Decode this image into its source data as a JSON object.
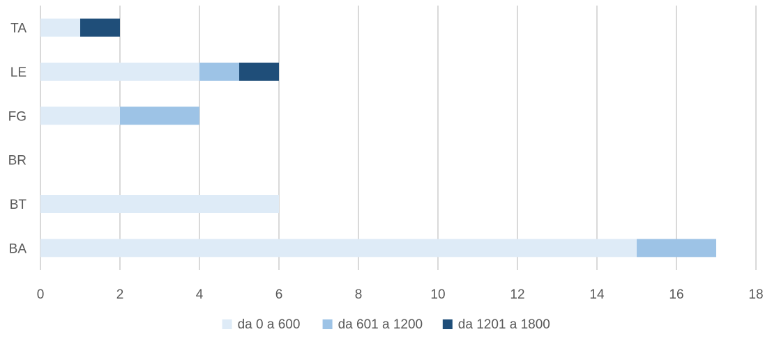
{
  "chart_data": {
    "type": "bar",
    "orientation": "horizontal",
    "stacked": true,
    "title": "",
    "xlabel": "",
    "ylabel": "",
    "categories": [
      "BA",
      "BT",
      "BR",
      "FG",
      "LE",
      "TA"
    ],
    "series": [
      {
        "name": "da 0 a 600",
        "color": "#deebf7",
        "values": [
          15,
          6,
          0,
          2,
          4,
          1
        ]
      },
      {
        "name": "da 601 a 1200",
        "color": "#9dc3e6",
        "values": [
          2,
          0,
          0,
          2,
          1,
          0
        ]
      },
      {
        "name": "da 1201 a 1800",
        "color": "#1f4e79",
        "values": [
          0,
          0,
          0,
          0,
          1,
          1
        ]
      }
    ],
    "xlim": [
      0,
      18
    ],
    "xticks": [
      0,
      2,
      4,
      6,
      8,
      10,
      12,
      14,
      16,
      18
    ],
    "xtick_labels": [
      "0",
      "2",
      "4",
      "6",
      "8",
      "10",
      "12",
      "14",
      "16",
      "18"
    ],
    "grid": true,
    "legend_position": "bottom"
  }
}
